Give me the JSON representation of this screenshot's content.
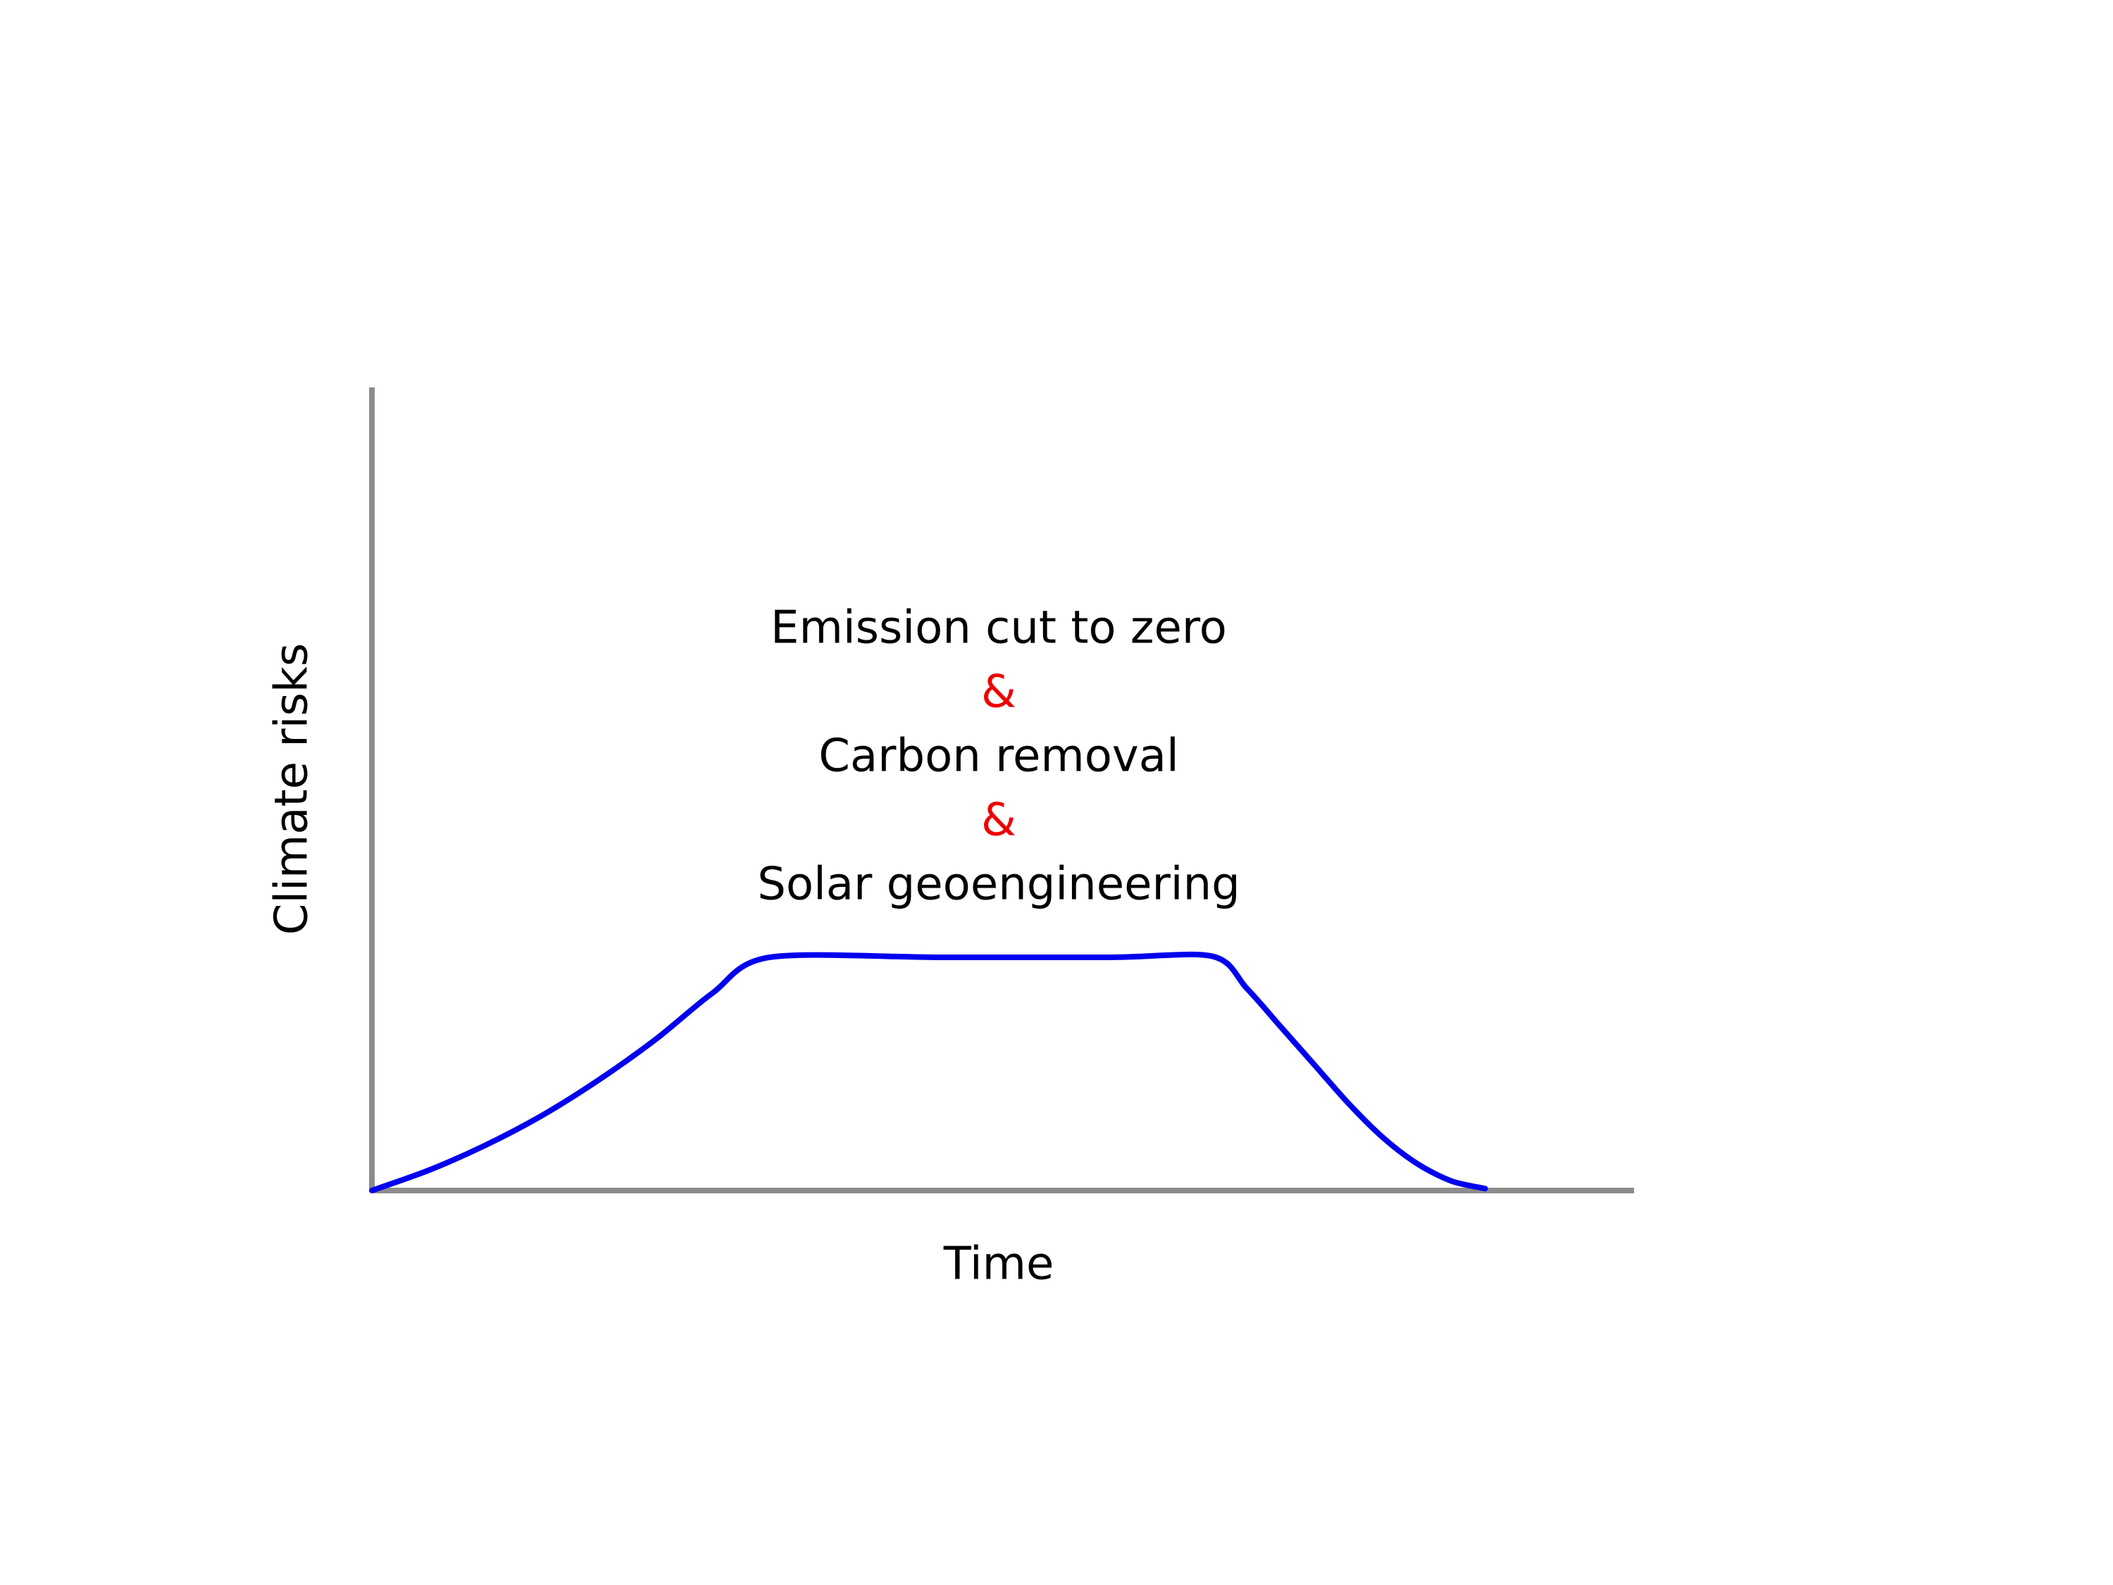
{
  "chart_data": {
    "type": "line",
    "title": "",
    "xlabel": "Time",
    "ylabel": "Climate risks",
    "xlim": [
      0,
      100
    ],
    "ylim": [
      0,
      100
    ],
    "grid": false,
    "series": [
      {
        "color": "#0000ee",
        "points": [
          [
            0,
            0
          ],
          [
            5,
            2.1
          ],
          [
            10,
            4.7
          ],
          [
            15,
            7.8
          ],
          [
            20,
            11.5
          ],
          [
            25,
            15.7
          ],
          [
            30,
            20.5
          ],
          [
            35,
            24.2
          ],
          [
            50,
            24.2
          ],
          [
            65,
            24.2
          ],
          [
            74,
            24.3
          ],
          [
            77,
            21
          ],
          [
            80,
            17
          ],
          [
            83,
            13
          ],
          [
            86,
            9
          ],
          [
            89,
            5.5
          ],
          [
            92,
            2.8
          ],
          [
            95,
            1
          ],
          [
            98,
            0.2
          ]
        ]
      }
    ],
    "annotations": [
      {
        "text": "Emission cut to zero",
        "color": "#000000"
      },
      {
        "text": "&",
        "color": "#ee0000"
      },
      {
        "text": "Carbon removal",
        "color": "#000000"
      },
      {
        "text": "&",
        "color": "#ee0000"
      },
      {
        "text": "Solar geoengineering",
        "color": "#000000"
      }
    ],
    "colors": {
      "axis": "#8c8c8c"
    }
  }
}
